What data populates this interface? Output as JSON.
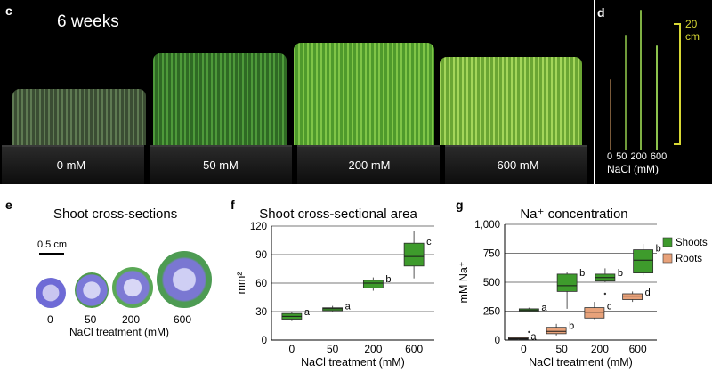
{
  "panels": {
    "c": {
      "letter": "c",
      "weeks": "6 weeks",
      "pots": [
        "0 mM",
        "50 mM",
        "200 mM",
        "600 mM"
      ]
    },
    "d": {
      "letter": "d",
      "scale": "20 cm",
      "ticks": "0  50 200 600",
      "axis": "NaCl (mM)"
    },
    "e": {
      "letter": "e",
      "title": "Shoot cross-sections",
      "scalebar": "0.5 cm",
      "labels": [
        "0",
        "50",
        "200",
        "600"
      ],
      "xlabel": "NaCl treatment (mM)"
    },
    "f": {
      "letter": "f"
    },
    "g": {
      "letter": "g"
    }
  },
  "chart_data": [
    {
      "panel": "f",
      "type": "box",
      "title": "Shoot cross-sectional area",
      "xlabel": "NaCl treatment (mM)",
      "ylabel": "mm²",
      "ylim": [
        0,
        120
      ],
      "yticks": [
        "0",
        "30",
        "60",
        "90",
        "120"
      ],
      "categories": [
        "0",
        "50",
        "200",
        "600"
      ],
      "grid": true,
      "series": [
        {
          "color": "#3e9b2c",
          "boxes": [
            {
              "min": 20,
              "q1": 22,
              "median": 25,
              "q3": 28,
              "max": 30,
              "letter": "a"
            },
            {
              "min": 30,
              "q1": 31,
              "median": 33,
              "q3": 34,
              "max": 36,
              "letter": "a"
            },
            {
              "min": 52,
              "q1": 55,
              "median": 60,
              "q3": 63,
              "max": 66,
              "letter": "b"
            },
            {
              "min": 65,
              "q1": 78,
              "median": 88,
              "q3": 102,
              "max": 115,
              "letter": "c"
            }
          ]
        }
      ]
    },
    {
      "panel": "g",
      "type": "box",
      "title": "Na⁺ concentration",
      "xlabel": "NaCl treatment (mM)",
      "ylabel": "mM Na⁺",
      "ylim": [
        0,
        1000
      ],
      "yticks": [
        "0",
        "250",
        "500",
        "750",
        "1,000"
      ],
      "categories": [
        "0",
        "50",
        "200",
        "600"
      ],
      "grid": true,
      "legend_position": "right",
      "series": [
        {
          "name": "Shoots",
          "color": "#3e9b2c",
          "boxes": [
            {
              "min": 240,
              "q1": 250,
              "median": 260,
              "q3": 270,
              "max": 280,
              "letter": "a",
              "outliers": [
                70
              ]
            },
            {
              "min": 270,
              "q1": 420,
              "median": 470,
              "q3": 570,
              "max": 590,
              "letter": "b",
              "outliers": []
            },
            {
              "min": 500,
              "q1": 510,
              "median": 540,
              "q3": 570,
              "max": 620,
              "letter": "b",
              "outliers": [
                400
              ]
            },
            {
              "min": 560,
              "q1": 580,
              "median": 690,
              "q3": 780,
              "max": 830,
              "letter": "b",
              "outliers": []
            }
          ]
        },
        {
          "name": "Roots",
          "color": "#e8a27a",
          "boxes": [
            {
              "min": 0,
              "q1": 5,
              "median": 12,
              "q3": 20,
              "max": 25,
              "letter": "a",
              "outliers": []
            },
            {
              "min": 40,
              "q1": 55,
              "median": 75,
              "q3": 110,
              "max": 140,
              "letter": "b",
              "outliers": []
            },
            {
              "min": 180,
              "q1": 190,
              "median": 240,
              "q3": 280,
              "max": 330,
              "letter": "c",
              "outliers": []
            },
            {
              "min": 330,
              "q1": 350,
              "median": 380,
              "q3": 400,
              "max": 420,
              "letter": "d",
              "outliers": []
            }
          ]
        }
      ]
    }
  ]
}
